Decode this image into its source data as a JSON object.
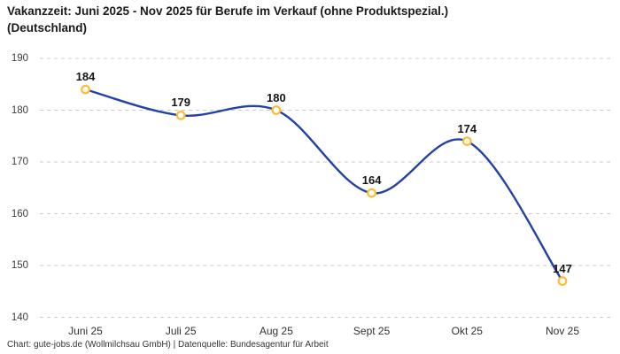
{
  "header": {
    "title_lines": [
      "Vakanzzeit: Juni 2025 - Nov 2025 für Berufe im Verkauf (ohne Produktspezial.)",
      "(Deutschland)"
    ]
  },
  "chart_data": {
    "type": "line",
    "title": "Vakanzzeit: Juni 2025 - Nov 2025 für Berufe im Verkauf (ohne Produktspezial.) (Deutschland)",
    "categories": [
      "Juni 25",
      "Juli 25",
      "Aug 25",
      "Sept 25",
      "Okt 25",
      "Nov 25"
    ],
    "values": [
      184,
      179,
      180,
      164,
      174,
      147
    ],
    "ylim": [
      140,
      190
    ],
    "yticks": [
      140,
      150,
      160,
      170,
      180,
      190
    ],
    "xlabel": "",
    "ylabel": "",
    "grid": "horizontal-dashed",
    "legend": "none",
    "curve": "smooth",
    "data_labels": true,
    "colors": {
      "line": "#2342a5",
      "marker_stroke": "#fbbd2f",
      "marker_fill": "#ffffff",
      "gridline": "#c9c9c9",
      "data_label": "#141414",
      "axis_text": "#3c3c3c"
    }
  },
  "footer": {
    "text": "Chart: gute-jobs.de (Wollmilchsau GmbH) | Datenquelle: Bundesagentur für Arbeit"
  }
}
